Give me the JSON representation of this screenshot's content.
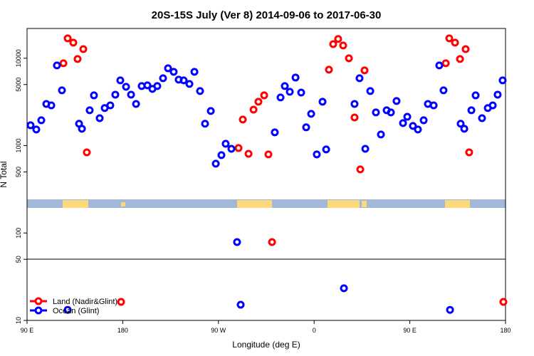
{
  "chart_data": {
    "type": "scatter",
    "title": "20S-15S July (Ver 8)   2014-09-06 to 2017-06-30",
    "xlabel": "Longitude (deg E)",
    "ylabel": "N Total",
    "yscale": "log",
    "xlim": [
      90,
      540
    ],
    "ylim": [
      10,
      21900
    ],
    "xticks": [
      {
        "value": 90,
        "label": "90 E"
      },
      180,
      {
        "value": 270,
        "label": "90 W"
      },
      {
        "value": 360,
        "label": "0"
      },
      {
        "value": 450,
        "label": "90 E"
      },
      {
        "value": 540,
        "label": "180"
      }
    ],
    "yticks": [
      10,
      50,
      100,
      500,
      1000,
      5000,
      10000
    ],
    "legend": "bottom-left",
    "series": [
      {
        "name": "Land (Nadir&Glint)",
        "color": "#ff0000",
        "x": [
          124.2,
          128.2,
          133.5,
          137.5,
          142.9,
          146.2,
          178.4,
          288.9,
          292.9,
          298.3,
          303.0,
          307.6,
          313.0,
          317.0,
          320.4,
          373.9,
          377.9,
          382.6,
          387.3,
          392.7,
          398.0,
          403.4,
          407.4,
          483.8,
          487.1,
          492.5,
          497.2,
          502.5,
          505.8,
          538.0
        ],
        "values": [
          8750,
          16900,
          15100,
          9800,
          12700,
          838,
          16.3,
          938,
          1990,
          807,
          2580,
          3180,
          3760,
          793,
          78.8,
          7390,
          14500,
          16600,
          14000,
          9980,
          2100,
          535,
          7260,
          8750,
          16900,
          15100,
          9800,
          12700,
          838,
          16.3
        ]
      },
      {
        "name": "Ocean (Glint)",
        "color": "#0000ff",
        "x": [
          93.3,
          98.7,
          103.4,
          108.1,
          112.8,
          118.1,
          122.8,
          128.2,
          138.9,
          141.6,
          148.9,
          152.9,
          158.3,
          163.0,
          168.3,
          173.0,
          177.7,
          183.1,
          187.8,
          192.5,
          197.8,
          203.2,
          207.9,
          212.5,
          217.9,
          222.6,
          227.9,
          232.6,
          237.3,
          242.7,
          247.4,
          252.7,
          257.4,
          262.8,
          267.5,
          272.8,
          276.8,
          282.2,
          287.5,
          290.9,
          323.0,
          328.4,
          332.4,
          337.1,
          342.5,
          347.8,
          352.5,
          357.2,
          362.5,
          367.9,
          371.3,
          388.0,
          398.0,
          402.7,
          408.1,
          412.8,
          418.1,
          422.8,
          428.2,
          432.2,
          437.5,
          443.6,
          447.6,
          452.9,
          457.6,
          463.0,
          467.0,
          472.4,
          477.7,
          481.7,
          487.8,
          497.8,
          501.2,
          507.9,
          511.9,
          517.9,
          523.3,
          528.0,
          532.6,
          537.3
        ],
        "values": [
          1710,
          1530,
          1950,
          3000,
          2890,
          8280,
          4290,
          13.2,
          1780,
          1560,
          2540,
          3760,
          2060,
          2690,
          2890,
          3830,
          5580,
          4710,
          3830,
          3000,
          4800,
          4890,
          4460,
          4800,
          5900,
          7670,
          6990,
          5690,
          5580,
          5080,
          6990,
          4210,
          1780,
          2490,
          621,
          778,
          1050,
          920,
          78.8,
          15.1,
          1420,
          3560,
          4800,
          4130,
          6010,
          4050,
          1620,
          2310,
          793,
          3180,
          904,
          23.3,
          3000,
          5900,
          920,
          4210,
          2400,
          1340,
          2540,
          2400,
          3240,
          1810,
          2140,
          1680,
          1530,
          1950,
          3000,
          2890,
          8280,
          4290,
          13.2,
          1780,
          1560,
          2540,
          3760,
          2060,
          2690,
          2890,
          3830,
          5580
        ]
      }
    ]
  }
}
